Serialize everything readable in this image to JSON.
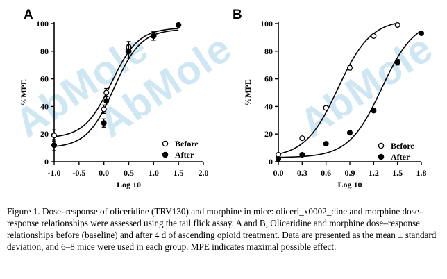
{
  "watermark": "AbMole",
  "chart_data": [
    {
      "panel": "A",
      "type": "scatter",
      "xlabel": "Log 10",
      "ylabel": "%MPE",
      "xlim": [
        -1.0,
        2.0
      ],
      "ylim": [
        0,
        100
      ],
      "xticks": [
        "-1.0",
        "-0.5",
        "0.0",
        "0.5",
        "1.0",
        "1.5",
        "2.0"
      ],
      "yticks": [
        "0",
        "20",
        "40",
        "60",
        "80",
        "100"
      ],
      "legend_position": "bottom-right",
      "series": [
        {
          "name": "Before",
          "marker": "open-circle",
          "x": [
            -1.0,
            0.0,
            0.05,
            0.5,
            1.0,
            1.5
          ],
          "y": [
            19,
            38,
            50,
            83,
            91,
            99
          ],
          "error": [
            4,
            3,
            3,
            4,
            3,
            0
          ],
          "fit": {
            "bottom": 17,
            "top": 97,
            "ec50_log": 0.15,
            "hill": 1.6
          }
        },
        {
          "name": "After",
          "marker": "filled-circle",
          "x": [
            -1.0,
            0.0,
            0.05,
            0.5,
            1.0,
            1.5
          ],
          "y": [
            12,
            28,
            44,
            80,
            91,
            99
          ],
          "error": [
            4,
            3,
            3,
            5,
            3,
            0
          ],
          "fit": {
            "bottom": 10,
            "top": 96,
            "ec50_log": 0.2,
            "hill": 1.6
          }
        }
      ]
    },
    {
      "panel": "B",
      "type": "scatter",
      "xlabel": "Log 10",
      "ylabel": "%MPE",
      "xlim": [
        0.0,
        1.8
      ],
      "ylim": [
        0,
        100
      ],
      "xticks": [
        "0.0",
        "0.3",
        "0.6",
        "0.9",
        "1.2",
        "1.5",
        "1.8"
      ],
      "yticks": [
        "0",
        "20",
        "40",
        "60",
        "80",
        "100"
      ],
      "legend_position": "bottom-right",
      "series": [
        {
          "name": "Before",
          "marker": "open-circle",
          "x": [
            0.0,
            0.3,
            0.6,
            0.9,
            1.2,
            1.5
          ],
          "y": [
            5,
            17,
            39,
            68,
            91,
            99
          ],
          "error": [
            0,
            0,
            0,
            1.5,
            0,
            0
          ],
          "fit": {
            "bottom": 3,
            "top": 103,
            "ec50_log": 0.75,
            "hill": 2.1
          }
        },
        {
          "name": "After",
          "marker": "filled-circle",
          "x": [
            0.0,
            0.3,
            0.6,
            0.9,
            1.2,
            1.5,
            1.8
          ],
          "y": [
            2,
            5,
            13,
            21,
            37,
            72,
            93
          ],
          "error": [
            0,
            0,
            0,
            1.5,
            0,
            2,
            0
          ],
          "fit": {
            "bottom": 3,
            "top": 103,
            "ec50_log": 1.3,
            "hill": 2.1
          }
        }
      ]
    }
  ],
  "caption": "Figure 1. Dose–response of oliceridine (TRV130) and morphine in mice: oliceri_x0002_dine and morphine dose–response relationships were assessed using the tail  flick assay. A and B, Oliceridine and morphine dose–response relationships before  (baseline) and after 4 d of ascending opioid treatment. Data are presented as the  mean ± standard deviation, and 6–8 mice  were used in each group. MPE indicates maximal possible effect."
}
